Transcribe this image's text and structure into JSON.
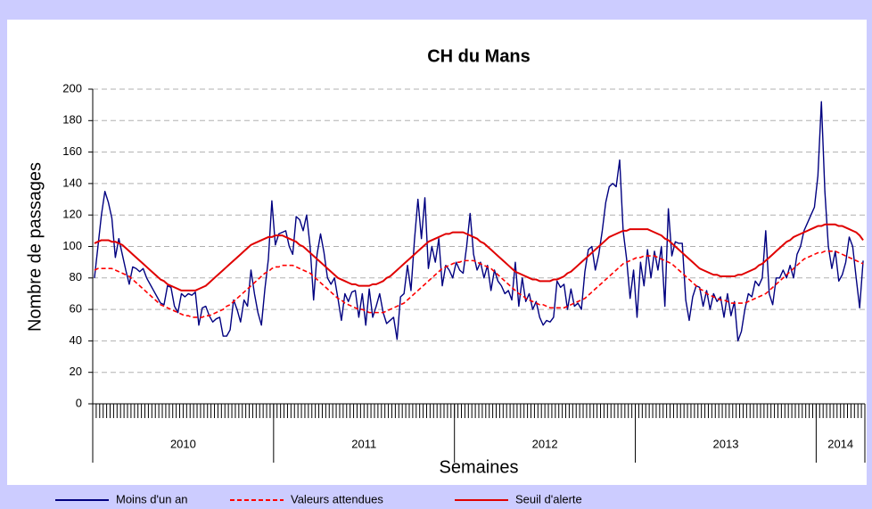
{
  "chart_data": {
    "type": "line",
    "title": "CH du Mans",
    "x_label": "Semaines",
    "y_label": "Nombre de passages",
    "ylim": [
      0,
      200
    ],
    "yticks": [
      0,
      20,
      40,
      60,
      80,
      100,
      120,
      140,
      160,
      180,
      200
    ],
    "grid": true,
    "legend": "bottom",
    "category_groups": [
      {
        "label": "2010",
        "size": 52
      },
      {
        "label": "2011",
        "size": 52
      },
      {
        "label": "2012",
        "size": 52
      },
      {
        "label": "2013",
        "size": 52
      },
      {
        "label": "2014",
        "size": 14
      }
    ],
    "categories": [
      null,
      null,
      null,
      null,
      null,
      null,
      null,
      null,
      null,
      null,
      null,
      null,
      null,
      null,
      null,
      null,
      null,
      null,
      null,
      null,
      null,
      null,
      null,
      null,
      null,
      null,
      null,
      null,
      null,
      null,
      null,
      null,
      null,
      null,
      null,
      null,
      null,
      null,
      null,
      null,
      null,
      null,
      null,
      null,
      null,
      null,
      null,
      null,
      null,
      null,
      null,
      null,
      null,
      null,
      null,
      null,
      null,
      null,
      null,
      null,
      null,
      null,
      null,
      null,
      null,
      null,
      null,
      null,
      null,
      null,
      null,
      null,
      null,
      null,
      null,
      null,
      null,
      null,
      null,
      null,
      null,
      null,
      null,
      null,
      null,
      null,
      null,
      null,
      null,
      null,
      null,
      null,
      null,
      null,
      null,
      null,
      null,
      null,
      null,
      null,
      null,
      null,
      null,
      null,
      null,
      null,
      null,
      null,
      null,
      null,
      null,
      null,
      null,
      null,
      null,
      null,
      null,
      null,
      null,
      null,
      null,
      null,
      null,
      null,
      null,
      null,
      null,
      null,
      null,
      null,
      null,
      null,
      null,
      null,
      null,
      null,
      null,
      null,
      null,
      null,
      null,
      null,
      null,
      null,
      null,
      null,
      null,
      null,
      null,
      null,
      null,
      null,
      null,
      null,
      null,
      null,
      null,
      null,
      null,
      null,
      null,
      null,
      null,
      null,
      null,
      null,
      null,
      null,
      null,
      null,
      null,
      null,
      null,
      null,
      null,
      null,
      null,
      null,
      null,
      null,
      null,
      null,
      null,
      null,
      null,
      null,
      null,
      null,
      null,
      null,
      null,
      null,
      null,
      null,
      null,
      null,
      null,
      null,
      null,
      null,
      null,
      null,
      null,
      null,
      null,
      null,
      null,
      null,
      null,
      null,
      null,
      null,
      null,
      null,
      null,
      null,
      null,
      null,
      null,
      null,
      null,
      null
    ],
    "series": [
      {
        "name": "Moins d'un an",
        "color": "#000080",
        "dash": false,
        "values": [
          80,
          100,
          120,
          135,
          128,
          118,
          93,
          105,
          95,
          85,
          76,
          87,
          86,
          84,
          86,
          80,
          76,
          72,
          68,
          64,
          63,
          75,
          74,
          62,
          58,
          70,
          68,
          70,
          69,
          71,
          50,
          61,
          62,
          56,
          52,
          54,
          55,
          43,
          43,
          47,
          66,
          60,
          52,
          66,
          62,
          85,
          70,
          58,
          50,
          73,
          92,
          129,
          101,
          108,
          109,
          110,
          100,
          95,
          119,
          117,
          110,
          120,
          100,
          66,
          95,
          108,
          96,
          80,
          76,
          80,
          67,
          53,
          70,
          65,
          71,
          72,
          55,
          70,
          50,
          73,
          55,
          62,
          70,
          58,
          51,
          53,
          55,
          41,
          68,
          70,
          88,
          72,
          104,
          130,
          105,
          131,
          86,
          100,
          90,
          105,
          75,
          88,
          85,
          80,
          90,
          85,
          83,
          100,
          121,
          95,
          85,
          90,
          80,
          88,
          72,
          85,
          78,
          75,
          70,
          72,
          66,
          90,
          62,
          80,
          65,
          70,
          60,
          65,
          55,
          50,
          53,
          52,
          55,
          78,
          74,
          76,
          60,
          73,
          62,
          64,
          60,
          84,
          98,
          100,
          85,
          95,
          110,
          128,
          138,
          140,
          138,
          155,
          110,
          92,
          67,
          85,
          55,
          90,
          75,
          98,
          80,
          97,
          85,
          100,
          62,
          124,
          94,
          103,
          102,
          102,
          66,
          53,
          68,
          75,
          74,
          62,
          72,
          60,
          70,
          65,
          68,
          55,
          70,
          56,
          65,
          40,
          46,
          60,
          70,
          68,
          78,
          75,
          80,
          110,
          70,
          63,
          80,
          80,
          85,
          80,
          88,
          80,
          95,
          100,
          110,
          115,
          120,
          125,
          145,
          192,
          135,
          100,
          86,
          97,
          78,
          82,
          90,
          106,
          100,
          80,
          61,
          91
        ]
      },
      {
        "name": "Valeurs attendues",
        "color": "#ff0000",
        "dash": true,
        "values": [
          85,
          86,
          86,
          86,
          86,
          86,
          85,
          84,
          83,
          82,
          81,
          79,
          77,
          75,
          73,
          71,
          69,
          67,
          65,
          63,
          62,
          61,
          60,
          59,
          58,
          57,
          56,
          56,
          55,
          55,
          55,
          55,
          56,
          56,
          57,
          58,
          59,
          60,
          62,
          63,
          65,
          67,
          69,
          71,
          73,
          75,
          77,
          79,
          81,
          83,
          84,
          86,
          87,
          87,
          88,
          88,
          88,
          88,
          87,
          86,
          85,
          84,
          83,
          81,
          79,
          77,
          75,
          73,
          71,
          69,
          67,
          66,
          64,
          63,
          62,
          61,
          60,
          60,
          59,
          58,
          58,
          58,
          58,
          58,
          59,
          60,
          61,
          62,
          63,
          64,
          66,
          68,
          70,
          72,
          74,
          76,
          78,
          80,
          82,
          84,
          86,
          87,
          88,
          89,
          90,
          90,
          91,
          91,
          91,
          91,
          90,
          89,
          88,
          87,
          86,
          84,
          82,
          80,
          78,
          76,
          74,
          72,
          70,
          69,
          67,
          66,
          65,
          64,
          63,
          63,
          62,
          61,
          61,
          61,
          61,
          61,
          62,
          63,
          64,
          65,
          66,
          67,
          69,
          71,
          73,
          75,
          77,
          79,
          81,
          83,
          85,
          87,
          89,
          90,
          91,
          92,
          93,
          93,
          94,
          94,
          94,
          94,
          93,
          92,
          91,
          90,
          89,
          87,
          85,
          83,
          81,
          79,
          77,
          75,
          73,
          72,
          70,
          69,
          68,
          67,
          66,
          66,
          65,
          64,
          64,
          64,
          64,
          64,
          65,
          66,
          67,
          68,
          69,
          70,
          72,
          74,
          76,
          78,
          80,
          82,
          84,
          86,
          88,
          90,
          92,
          93,
          94,
          95,
          96,
          96,
          97,
          97,
          97,
          97,
          96,
          95,
          94,
          93,
          92,
          91,
          90,
          89
        ]
      },
      {
        "name": "Seuil d'alerte",
        "color": "#e00000",
        "dash": false,
        "values": [
          102,
          103,
          104,
          104,
          104,
          103,
          103,
          102,
          101,
          99,
          97,
          95,
          93,
          91,
          89,
          87,
          85,
          83,
          81,
          79,
          78,
          76,
          75,
          74,
          73,
          72,
          72,
          72,
          72,
          72,
          73,
          74,
          75,
          77,
          79,
          81,
          83,
          85,
          87,
          89,
          91,
          93,
          95,
          97,
          99,
          101,
          102,
          103,
          104,
          105,
          106,
          106,
          107,
          107,
          107,
          106,
          105,
          104,
          103,
          101,
          100,
          98,
          96,
          94,
          92,
          90,
          88,
          86,
          84,
          82,
          80,
          79,
          78,
          77,
          76,
          76,
          75,
          75,
          75,
          75,
          76,
          76,
          77,
          78,
          80,
          81,
          83,
          85,
          87,
          89,
          91,
          93,
          95,
          97,
          99,
          101,
          103,
          104,
          105,
          106,
          107,
          108,
          108,
          109,
          109,
          109,
          109,
          108,
          107,
          106,
          105,
          103,
          102,
          100,
          98,
          96,
          94,
          92,
          90,
          88,
          86,
          84,
          83,
          82,
          81,
          80,
          79,
          79,
          78,
          78,
          78,
          78,
          79,
          79,
          80,
          81,
          83,
          84,
          86,
          88,
          90,
          92,
          94,
          96,
          98,
          100,
          102,
          104,
          106,
          107,
          108,
          109,
          110,
          110,
          111,
          111,
          111,
          111,
          111,
          111,
          110,
          109,
          108,
          107,
          105,
          104,
          102,
          100,
          98,
          96,
          94,
          92,
          90,
          88,
          86,
          85,
          84,
          83,
          82,
          82,
          81,
          81,
          81,
          81,
          81,
          82,
          82,
          83,
          84,
          85,
          86,
          88,
          89,
          91,
          93,
          95,
          97,
          99,
          101,
          103,
          104,
          106,
          107,
          108,
          109,
          110,
          111,
          112,
          113,
          113,
          114,
          114,
          114,
          114,
          113,
          113,
          112,
          111,
          110,
          109,
          107,
          104
        ]
      }
    ]
  }
}
